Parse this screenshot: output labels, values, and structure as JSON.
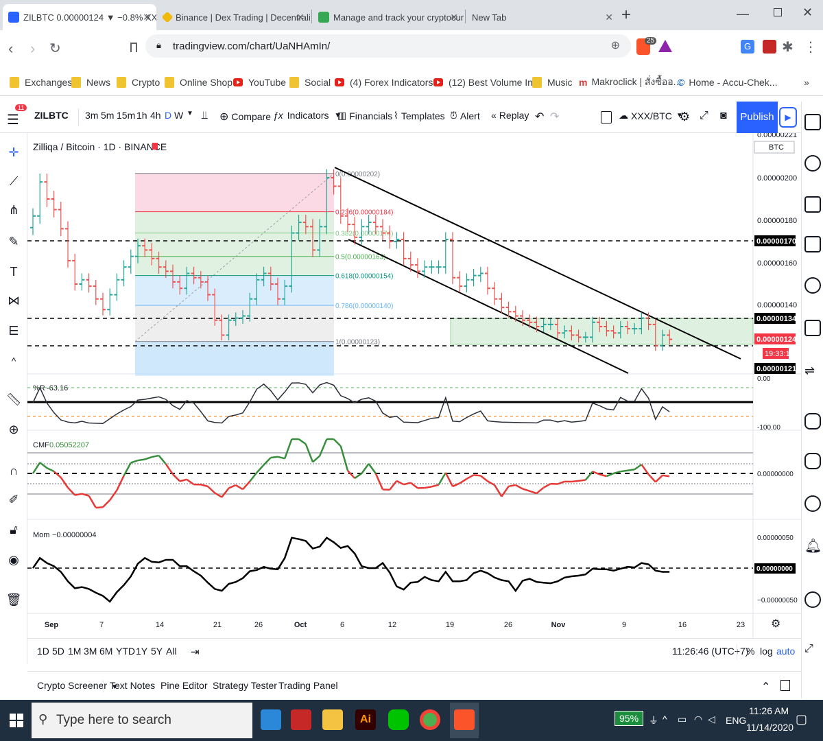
{
  "browser": {
    "tabs": [
      {
        "title": "ZILBTC 0.00000124 ▼ −0.8% XXX/I"
      },
      {
        "title": "Binance | Dex Trading | Decentraliz"
      },
      {
        "title": "Manage and track your cryptocurre"
      },
      {
        "title": "New Tab"
      }
    ],
    "new_tab": "+",
    "url": "tradingview.com/chart/UaNHAmIn/",
    "extension_badge": "25",
    "bookmarks": [
      "Exchanges",
      "News",
      "Crypto",
      "Online Shop",
      "YouTube",
      "Social",
      "(4) Forex Indicators...",
      "(12) Best Volume In...",
      "Music",
      "Makroclick | สั่งซื้ออ...",
      "Home - Accu-Chek..."
    ],
    "bookmarks_more": "»"
  },
  "tv": {
    "notif_count": "11",
    "symbol": "ZILBTC",
    "intervals": [
      "3m",
      "5m",
      "15m",
      "1h",
      "4h",
      "D",
      "W"
    ],
    "active_interval": "D",
    "toolbar": {
      "compare": "Compare",
      "indicators": "Indicators",
      "financials": "Financials",
      "templates": "Templates",
      "alert": "Alert",
      "replay": "Replay"
    },
    "layout_name": "XXX/BTC",
    "publish": "Publish"
  },
  "chart": {
    "title": "Zilliqa / Bitcoin · 1D · BINANCE",
    "currency": "BTC",
    "price_axis": [
      "0.00000200",
      "0.00000180",
      "0.00000160",
      "0.00000140"
    ],
    "price_axis_top": "0.00000221",
    "hline_labels": [
      "0.00000170",
      "0.00000134",
      "0.00000121"
    ],
    "last_price": "0.00000124",
    "countdown": "19:33:15",
    "fib_levels": [
      {
        "label": "0(0.00000202)",
        "color": "#787b86"
      },
      {
        "label": "0.236(0.00000184)",
        "color": "#f23645"
      },
      {
        "label": "0.382(0.00000174)",
        "color": "#81c784"
      },
      {
        "label": "0.5(0.00000163)",
        "color": "#4caf50"
      },
      {
        "label": "0.618(0.00000154)",
        "color": "#089981"
      },
      {
        "label": "0.786(0.00000140)",
        "color": "#64b5f6"
      },
      {
        "label": "1(0.00000123)",
        "color": "#787b86"
      }
    ],
    "wr": {
      "label": "%R",
      "value": "-63.16",
      "axis": [
        "0.00",
        "-100.00"
      ]
    },
    "cmf": {
      "label": "CMF",
      "value": "0.05052207",
      "axis": [
        "0.00000000"
      ]
    },
    "mom": {
      "label": "Mom",
      "value": "−0.00000004",
      "axis": [
        "0.00000050",
        "0.00000000",
        "−0.00000050"
      ]
    },
    "time_axis": [
      "Sep",
      "7",
      "14",
      "21",
      "26",
      "Oct",
      "6",
      "12",
      "19",
      "26",
      "Nov",
      "9",
      "16",
      "23"
    ]
  },
  "chart_data": {
    "type": "candlestick",
    "title": "Zilliqa / Bitcoin · 1D · BINANCE",
    "ylim": [
      1.2e-06,
      2.21e-06
    ],
    "x_start": "2020-08-30",
    "series": [
      {
        "name": "ZILBTC",
        "close": [
          1.82e-06,
          1.98e-06,
          1.9e-06,
          1.85e-06,
          1.76e-06,
          1.61e-06,
          1.5e-06,
          1.52e-06,
          1.49e-06,
          1.43e-06,
          1.38e-06,
          1.45e-06,
          1.52e-06,
          1.58e-06,
          1.63e-06,
          1.68e-06,
          1.66e-06,
          1.62e-06,
          1.58e-06,
          1.56e-06,
          1.51e-06,
          1.48e-06,
          1.55e-06,
          1.53e-06,
          1.51e-06,
          1.45e-06,
          1.33e-06,
          1.26e-06,
          1.33e-06,
          1.34e-06,
          1.35e-06,
          1.43e-06,
          1.52e-06,
          1.55e-06,
          1.5e-06,
          1.43e-06,
          1.49e-06,
          1.74e-06,
          1.79e-06,
          1.77e-06,
          1.66e-06,
          1.77e-06,
          2e-06,
          1.96e-06,
          1.82e-06,
          1.78e-06,
          1.72e-06,
          1.77e-06,
          1.79e-06,
          1.77e-06,
          1.74e-06,
          1.7e-06,
          1.71e-06,
          1.62e-06,
          1.59e-06,
          1.56e-06,
          1.58e-06,
          1.58e-06,
          1.58e-06,
          1.71e-06,
          1.53e-06,
          1.49e-06,
          1.52e-06,
          1.54e-06,
          1.55e-06,
          1.48e-06,
          1.43e-06,
          1.39e-06,
          1.37e-06,
          1.35e-06,
          1.33e-06,
          1.32e-06,
          1.3e-06,
          1.31e-06,
          1.31e-06,
          1.27e-06,
          1.28e-06,
          1.26e-06,
          1.25e-06,
          1.25e-06,
          1.32e-06,
          1.3e-06,
          1.28e-06,
          1.27e-06,
          1.3e-06,
          1.29e-06,
          1.29e-06,
          1.34e-06,
          1.31e-06,
          1.21e-06,
          1.26e-06,
          1.24e-06
        ]
      }
    ],
    "annotations": [
      "Fib retracement 0.00000202 → 0.00000123",
      "Descending channel",
      "Horizontal levels 0.00000170 / 0.00000134 / 0.00000121"
    ]
  },
  "bottom": {
    "ranges": [
      "1D",
      "5D",
      "1M",
      "3M",
      "6M",
      "YTD",
      "1Y",
      "5Y",
      "All"
    ],
    "clock": "11:26:46 (UTC+7)",
    "pct": "%",
    "log": "log",
    "auto": "auto"
  },
  "panels": [
    "Crypto Screener",
    "Text Notes",
    "Pine Editor",
    "Strategy Tester",
    "Trading Panel"
  ],
  "taskbar": {
    "search_placeholder": "Type here to search",
    "battery": "95%",
    "lang": "ENG",
    "time": "11:26 AM",
    "date": "11/14/2020"
  }
}
